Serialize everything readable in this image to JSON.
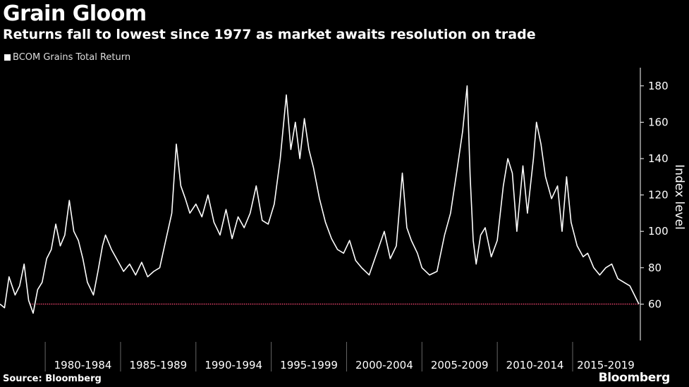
{
  "header": {
    "title": "Grain Gloom",
    "subtitle": "Returns fall to lowest since 1977 as market awaits resolution on trade"
  },
  "footer": {
    "source": "Source: Bloomberg",
    "brand": "Bloomberg"
  },
  "colors": {
    "background": "#000000",
    "series": "#ffffff",
    "reference_line": "#e8436b"
  },
  "chart_data": {
    "type": "line",
    "title": "Grain Gloom",
    "subtitle": "Returns fall to lowest since 1977 as market awaits resolution on trade",
    "ylabel": "Index level",
    "xlabel": "",
    "x_range": [
      1977.0,
      2019.4
    ],
    "ylim": [
      40,
      190
    ],
    "y_ticks": [
      60,
      80,
      100,
      120,
      140,
      160,
      180
    ],
    "x_tick_labels": [
      "1980-1984",
      "1985-1989",
      "1990-1994",
      "1995-1999",
      "2000-2004",
      "2005-2009",
      "2010-2014",
      "2015-2019"
    ],
    "x_bands": [
      [
        1980,
        1985
      ],
      [
        1985,
        1990
      ],
      [
        1990,
        1995
      ],
      [
        1995,
        2000
      ],
      [
        2000,
        2005
      ],
      [
        2005,
        2010
      ],
      [
        2010,
        2015
      ],
      [
        2015,
        2020
      ]
    ],
    "grid": false,
    "y_axis_position": "right",
    "legend_position": "top-left",
    "reference_line": {
      "y": 60,
      "x_start": 1979.0,
      "x_end": 2019.4,
      "style": "dotted"
    },
    "series": [
      {
        "name": "BCOM Grains Total Return",
        "x": [
          1977.0,
          1977.3,
          1977.6,
          1978.0,
          1978.3,
          1978.6,
          1978.9,
          1979.2,
          1979.5,
          1979.8,
          1980.1,
          1980.4,
          1980.7,
          1981.0,
          1981.3,
          1981.6,
          1981.9,
          1982.2,
          1982.5,
          1982.8,
          1983.2,
          1983.5,
          1983.8,
          1984.0,
          1984.4,
          1984.8,
          1985.2,
          1985.6,
          1986.0,
          1986.4,
          1986.8,
          1987.2,
          1987.6,
          1988.0,
          1988.4,
          1988.7,
          1989.0,
          1989.3,
          1989.6,
          1990.0,
          1990.4,
          1990.8,
          1991.2,
          1991.6,
          1992.0,
          1992.4,
          1992.8,
          1993.2,
          1993.6,
          1994.0,
          1994.4,
          1994.8,
          1995.2,
          1995.6,
          1996.0,
          1996.3,
          1996.6,
          1996.9,
          1997.2,
          1997.5,
          1997.8,
          1998.2,
          1998.6,
          1999.0,
          1999.4,
          1999.8,
          2000.2,
          2000.6,
          2001.0,
          2001.5,
          2002.0,
          2002.5,
          2002.9,
          2003.3,
          2003.7,
          2004.0,
          2004.3,
          2004.7,
          2005.0,
          2005.5,
          2006.0,
          2006.5,
          2006.9,
          2007.3,
          2007.7,
          2008.0,
          2008.2,
          2008.4,
          2008.6,
          2008.9,
          2009.2,
          2009.6,
          2010.0,
          2010.4,
          2010.7,
          2011.0,
          2011.3,
          2011.7,
          2012.0,
          2012.4,
          2012.6,
          2012.9,
          2013.2,
          2013.6,
          2014.0,
          2014.3,
          2014.6,
          2014.9,
          2015.3,
          2015.7,
          2016.0,
          2016.4,
          2016.8,
          2017.2,
          2017.6,
          2018.0,
          2018.4,
          2018.8,
          2019.1,
          2019.4
        ],
        "values": [
          60,
          58,
          75,
          65,
          70,
          82,
          62,
          55,
          68,
          72,
          85,
          90,
          104,
          92,
          98,
          117,
          100,
          95,
          85,
          72,
          65,
          78,
          92,
          98,
          90,
          84,
          78,
          82,
          76,
          83,
          75,
          78,
          80,
          95,
          110,
          148,
          125,
          118,
          110,
          115,
          108,
          120,
          105,
          98,
          112,
          96,
          108,
          102,
          110,
          125,
          106,
          104,
          115,
          140,
          175,
          145,
          160,
          140,
          162,
          145,
          135,
          118,
          105,
          96,
          90,
          88,
          95,
          84,
          80,
          76,
          88,
          100,
          85,
          92,
          132,
          102,
          95,
          88,
          80,
          76,
          78,
          98,
          110,
          132,
          155,
          180,
          130,
          95,
          82,
          98,
          102,
          86,
          95,
          125,
          140,
          132,
          100,
          136,
          110,
          140,
          160,
          148,
          130,
          118,
          125,
          100,
          130,
          105,
          92,
          86,
          88,
          80,
          76,
          80,
          82,
          74,
          72,
          70,
          65,
          60
        ]
      }
    ]
  }
}
